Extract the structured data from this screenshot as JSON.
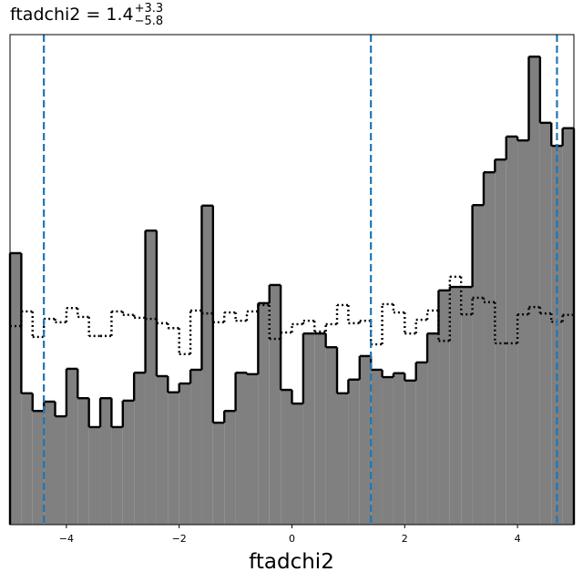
{
  "chart_data": {
    "type": "histogram",
    "title": {
      "text": "ftadchi2 = 1.4",
      "upper": "+3.3",
      "lower": "−5.8"
    },
    "xlabel": "ftadchi2",
    "bins": [
      -5,
      -4.8,
      -4.6,
      -4.4,
      -4.2,
      -4,
      -3.8,
      -3.6,
      -3.4,
      -3.2,
      -3,
      -2.8,
      -2.6,
      -2.4,
      -2.2,
      -2,
      -1.8,
      -1.6,
      -1.4,
      -1.2,
      -1,
      -0.8,
      -0.6,
      -0.4,
      -0.2,
      0,
      0.2,
      0.4,
      0.6,
      0.8,
      1,
      1.2,
      1.4,
      1.6,
      1.8,
      2,
      2.2,
      2.4,
      2.6,
      2.8,
      3,
      3.2,
      3.4,
      3.6,
      3.8,
      4,
      4.2,
      4.4,
      4.6,
      4.8,
      5
    ],
    "series": [
      {
        "color": "#808080",
        "edge": "#000000",
        "style": "filled",
        "values": [
          55.4,
          26.8,
          23.2,
          25.1,
          22.1,
          31.8,
          25.8,
          19.9,
          25.8,
          19.9,
          25.3,
          31.0,
          60.0,
          30.3,
          27.0,
          28.8,
          31.6,
          65.1,
          20.8,
          23.2,
          31.0,
          30.7,
          45.2,
          48.9,
          27.5,
          24.7,
          39.0,
          39.0,
          36.2,
          26.8,
          29.6,
          34.4,
          31.6,
          30.1,
          30.9,
          29.4,
          33.1,
          39.0,
          47.8,
          48.5,
          48.5,
          65.2,
          71.9,
          74.5,
          79.2,
          78.4,
          95.5,
          82.0,
          77.3,
          80.9
        ]
      },
      {
        "color": "#000000",
        "style": "dotted",
        "values": [
          40.5,
          43.5,
          38.3,
          42.0,
          41.3,
          44.2,
          42.4,
          38.5,
          38.5,
          43.5,
          42.8,
          42.2,
          42.0,
          41.1,
          40.1,
          34.8,
          43.7,
          43.1,
          41.3,
          43.3,
          41.6,
          43.5,
          44.8,
          37.9,
          39.2,
          40.9,
          41.6,
          39.4,
          40.9,
          44.8,
          41.1,
          41.6,
          36.8,
          45.0,
          43.3,
          39.0,
          41.8,
          43.7,
          37.5,
          50.6,
          42.9,
          46.3,
          45.4,
          37.0,
          37.0,
          42.9,
          44.4,
          43.1,
          41.4,
          42.8
        ]
      }
    ],
    "vlines": [
      -4.4,
      1.4,
      4.7
    ],
    "vline_color": "#1f77b4",
    "xlim": [
      -5,
      5
    ],
    "ylim": [
      0,
      100
    ],
    "xticks": [
      {
        "value": -4,
        "label": "−4"
      },
      {
        "value": -2,
        "label": "−2"
      },
      0,
      2,
      4
    ]
  }
}
